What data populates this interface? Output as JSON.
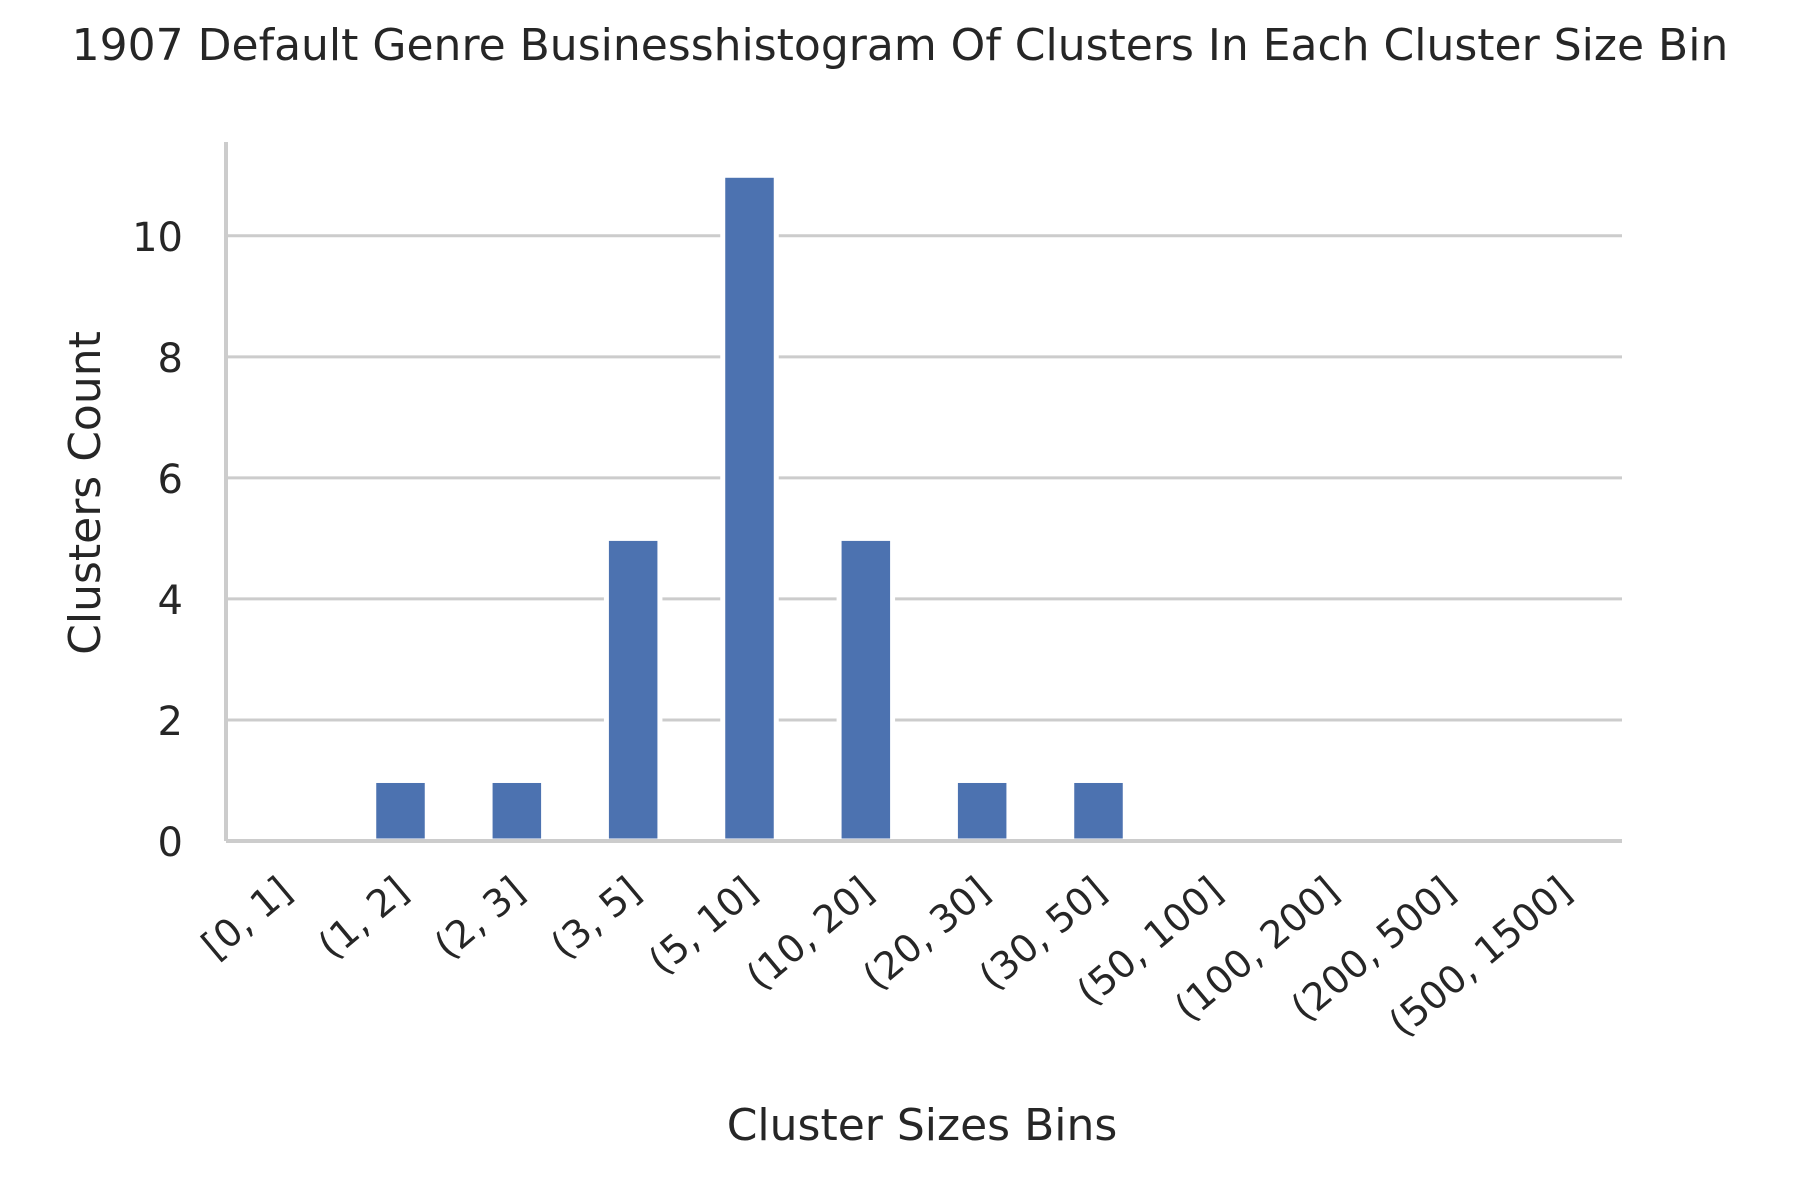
{
  "chart_data": {
    "type": "bar",
    "title": "1907 Default Genre Businesshistogram Of Clusters In Each Cluster Size Bin",
    "xlabel": "Cluster Sizes Bins",
    "ylabel": "Clusters Count",
    "categories": [
      "[0, 1]",
      "(1, 2]",
      "(2, 3]",
      "(3, 5]",
      "(5, 10]",
      "(10, 20]",
      "(20, 30]",
      "(30, 50]",
      "(50, 100]",
      "(100, 200]",
      "(200, 500]",
      "(500, 1500]"
    ],
    "values": [
      0,
      1,
      1,
      5,
      11,
      5,
      1,
      1,
      0,
      0,
      0,
      0
    ],
    "ylim": [
      0,
      11.55
    ],
    "yticks": [
      0,
      2,
      4,
      6,
      8,
      10
    ],
    "grid": "horizontal",
    "bar_color": "#4c72b0",
    "grid_color": "#cccccc",
    "axis_color": "#cccccc"
  }
}
